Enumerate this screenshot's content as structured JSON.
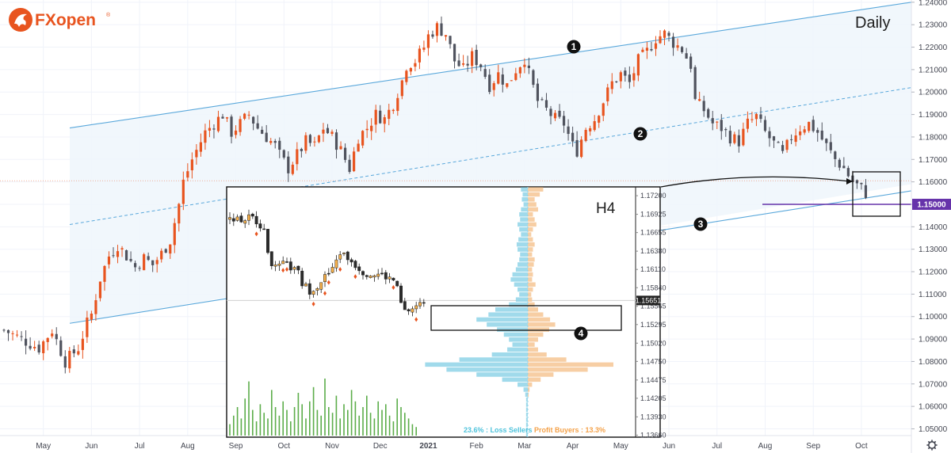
{
  "brand": {
    "name": "FXopen",
    "trademark": "®",
    "accent_color": "#e8541f"
  },
  "daily_label": "Daily",
  "h4_label": "H4",
  "current_price_label": "1.15000",
  "inset_price_label": "1.15651",
  "markers": [
    "1",
    "2",
    "3",
    "4"
  ],
  "legend": {
    "loss_sellers": "23.6% : Loss Sellers",
    "profit_buyers": "Profit Buyers : 13.3%"
  },
  "colors": {
    "bull": "#e8541f",
    "bear": "#50535e",
    "channel": "#5aa8db",
    "channel_fill": "#eef6fc",
    "buyers": "#f6c99a",
    "sellers": "#8fd3e8",
    "level_line": "#6633aa",
    "volume": "#5cad4a"
  },
  "chart_data": [
    {
      "type": "candlestick",
      "timeframe": "Daily",
      "x_ticks": [
        "May",
        "Jun",
        "Jul",
        "Aug",
        "Sep",
        "Oct",
        "Nov",
        "Dec",
        "2021",
        "Feb",
        "Mar",
        "Apr",
        "May",
        "Jun",
        "Jul",
        "Aug",
        "Sep",
        "Oct"
      ],
      "y_ticks": [
        "1.24000",
        "1.23000",
        "1.22000",
        "1.21000",
        "1.20000",
        "1.19000",
        "1.18000",
        "1.17000",
        "1.16000",
        "1.15000",
        "1.14000",
        "1.13000",
        "1.12000",
        "1.11000",
        "1.10000",
        "1.09000",
        "1.08000",
        "1.07000",
        "1.06000",
        "1.05000"
      ],
      "ylim": [
        1.047,
        1.241
      ],
      "close_path": [
        [
          0,
          1.094
        ],
        [
          4,
          1.09
        ],
        [
          8,
          1.086
        ],
        [
          11,
          1.094
        ],
        [
          14,
          1.08
        ],
        [
          17,
          1.086
        ],
        [
          19,
          1.097
        ],
        [
          20,
          1.101
        ],
        [
          22,
          1.117
        ],
        [
          24,
          1.127
        ],
        [
          26,
          1.132
        ],
        [
          28,
          1.127
        ],
        [
          30,
          1.122
        ],
        [
          32,
          1.126
        ],
        [
          34,
          1.123
        ],
        [
          36,
          1.128
        ],
        [
          38,
          1.134
        ],
        [
          40,
          1.15
        ],
        [
          41,
          1.16
        ],
        [
          43,
          1.17
        ],
        [
          44,
          1.174
        ],
        [
          46,
          1.182
        ],
        [
          48,
          1.186
        ],
        [
          50,
          1.19
        ],
        [
          52,
          1.182
        ],
        [
          54,
          1.186
        ],
        [
          56,
          1.19
        ],
        [
          58,
          1.184
        ],
        [
          60,
          1.18
        ],
        [
          62,
          1.176
        ],
        [
          63,
          1.172
        ],
        [
          65,
          1.166
        ],
        [
          67,
          1.172
        ],
        [
          69,
          1.178
        ],
        [
          71,
          1.176
        ],
        [
          73,
          1.184
        ],
        [
          75,
          1.18
        ],
        [
          77,
          1.174
        ],
        [
          79,
          1.166
        ],
        [
          81,
          1.18
        ],
        [
          83,
          1.184
        ],
        [
          85,
          1.19
        ],
        [
          87,
          1.188
        ],
        [
          89,
          1.195
        ],
        [
          91,
          1.205
        ],
        [
          92,
          1.212
        ],
        [
          94,
          1.214
        ],
        [
          96,
          1.22
        ],
        [
          97,
          1.225
        ],
        [
          99,
          1.229
        ],
        [
          101,
          1.226
        ],
        [
          103,
          1.214
        ],
        [
          105,
          1.21
        ],
        [
          107,
          1.216
        ],
        [
          109,
          1.212
        ],
        [
          111,
          1.203
        ],
        [
          113,
          1.208
        ],
        [
          115,
          1.203
        ],
        [
          117,
          1.21
        ],
        [
          119,
          1.215
        ],
        [
          120,
          1.208
        ],
        [
          122,
          1.196
        ],
        [
          124,
          1.192
        ],
        [
          126,
          1.188
        ],
        [
          128,
          1.186
        ],
        [
          130,
          1.176
        ],
        [
          131,
          1.174
        ],
        [
          133,
          1.184
        ],
        [
          135,
          1.188
        ],
        [
          137,
          1.196
        ],
        [
          139,
          1.204
        ],
        [
          141,
          1.208
        ],
        [
          143,
          1.204
        ],
        [
          145,
          1.214
        ],
        [
          147,
          1.218
        ],
        [
          149,
          1.224
        ],
        [
          151,
          1.226
        ],
        [
          153,
          1.222
        ],
        [
          155,
          1.219
        ],
        [
          157,
          1.212
        ],
        [
          158,
          1.196
        ],
        [
          160,
          1.192
        ],
        [
          162,
          1.186
        ],
        [
          164,
          1.184
        ],
        [
          166,
          1.18
        ],
        [
          168,
          1.178
        ],
        [
          170,
          1.186
        ],
        [
          172,
          1.189
        ],
        [
          174,
          1.182
        ],
        [
          176,
          1.177
        ],
        [
          178,
          1.172
        ],
        [
          180,
          1.18
        ],
        [
          182,
          1.184
        ],
        [
          184,
          1.186
        ],
        [
          186,
          1.182
        ],
        [
          188,
          1.176
        ],
        [
          190,
          1.17
        ],
        [
          192,
          1.166
        ],
        [
          194,
          1.16
        ],
        [
          196,
          1.157
        ],
        [
          197,
          1.155
        ]
      ],
      "channel": {
        "upper": [
          [
            1.184,
            1.204
          ],
          [
            1.24,
            1.232
          ]
        ],
        "middle_dashed": [
          [
            1.141,
            1.161
          ],
          [
            1.202,
            1.202
          ]
        ],
        "lower": [
          [
            1.097,
            1.118
          ],
          [
            1.156,
            1.159
          ]
        ]
      },
      "horizontal_level": 1.15,
      "annotations": [
        {
          "label": "1",
          "at": [
            118,
            1.221
          ]
        },
        {
          "label": "2",
          "at": [
            128,
            1.183
          ]
        },
        {
          "label": "3",
          "at": [
            141,
            1.141
          ]
        }
      ]
    },
    {
      "type": "candlestick-with-volume-profile",
      "timeframe": "H4",
      "y_ticks": [
        "1.17200",
        "1.16925",
        "1.16655",
        "1.16380",
        "1.16110",
        "1.15840",
        "1.15565",
        "1.15295",
        "1.15020",
        "1.14750",
        "1.14475",
        "1.14205",
        "1.13930",
        "1.13660"
      ],
      "ylim": [
        1.1363,
        1.1733
      ],
      "close_path": [
        [
          0,
          1.1685
        ],
        [
          2,
          1.169
        ],
        [
          3,
          1.1682
        ],
        [
          5,
          1.1688
        ],
        [
          7,
          1.1684
        ],
        [
          8,
          1.1678
        ],
        [
          9,
          1.1665
        ],
        [
          10,
          1.164
        ],
        [
          11,
          1.1622
        ],
        [
          12,
          1.1612
        ],
        [
          14,
          1.1618
        ],
        [
          16,
          1.1614
        ],
        [
          18,
          1.1605
        ],
        [
          19,
          1.159
        ],
        [
          21,
          1.158
        ],
        [
          23,
          1.1588
        ],
        [
          25,
          1.16
        ],
        [
          27,
          1.161
        ],
        [
          28,
          1.1625
        ],
        [
          29,
          1.1636
        ],
        [
          31,
          1.1628
        ],
        [
          33,
          1.1618
        ],
        [
          35,
          1.1608
        ],
        [
          37,
          1.1604
        ],
        [
          39,
          1.1604
        ],
        [
          41,
          1.16
        ],
        [
          43,
          1.1595
        ],
        [
          44,
          1.1582
        ],
        [
          45,
          1.156
        ],
        [
          46,
          1.1548
        ],
        [
          47,
          1.1551
        ],
        [
          48,
          1.1553
        ],
        [
          49,
          1.1556
        ],
        [
          50,
          1.1559
        ],
        [
          51,
          1.1565
        ]
      ],
      "volume_relative": [
        0.2,
        0.35,
        0.5,
        0.3,
        0.65,
        0.95,
        0.45,
        0.25,
        0.55,
        0.4,
        0.3,
        0.8,
        0.5,
        0.35,
        0.6,
        0.45,
        0.25,
        0.5,
        0.75,
        0.55,
        0.3,
        0.6,
        0.85,
        0.45,
        0.35,
        1.0,
        0.5,
        0.4,
        0.7,
        0.3,
        0.55,
        0.45,
        0.8,
        0.6,
        0.35,
        0.5,
        0.7,
        0.4,
        0.3,
        0.6,
        0.45,
        0.55,
        0.35,
        0.25,
        0.65,
        0.5,
        0.4,
        0.3,
        0.2,
        0.15
      ],
      "volume_profile": {
        "ylim": [
          1.1363,
          1.1733
        ],
        "buyers_relative": [
          0.18,
          0.14,
          0.08,
          0.1,
          0.12,
          0.06,
          0.08,
          0.1,
          0.06,
          0.04,
          0.06,
          0.08,
          0.06,
          0.05,
          0.08,
          0.07,
          0.05,
          0.06,
          0.05,
          0.09,
          0.06,
          0.04,
          0.05,
          0.08,
          0.12,
          0.18,
          0.26,
          0.32,
          0.25,
          0.18,
          0.12,
          0.08,
          0.12,
          0.22,
          0.45,
          1.0,
          0.7,
          0.3,
          0.15,
          0.05,
          0.02,
          0.01,
          0.0,
          0.0,
          0.0,
          0.0,
          0.0,
          0.0,
          0.0,
          0.0
        ],
        "sellers_relative": [
          0.08,
          0.06,
          0.07,
          0.05,
          0.08,
          0.1,
          0.09,
          0.12,
          0.1,
          0.08,
          0.11,
          0.13,
          0.12,
          0.09,
          0.1,
          0.12,
          0.14,
          0.18,
          0.2,
          0.16,
          0.12,
          0.1,
          0.14,
          0.22,
          0.38,
          0.46,
          0.6,
          0.48,
          0.36,
          0.28,
          0.22,
          0.18,
          0.24,
          0.42,
          0.8,
          1.2,
          0.95,
          0.6,
          0.3,
          0.12,
          0.05,
          0.03,
          0.02,
          0.02,
          0.02,
          0.02,
          0.02,
          0.02,
          0.02,
          0.02
        ]
      }
    }
  ]
}
